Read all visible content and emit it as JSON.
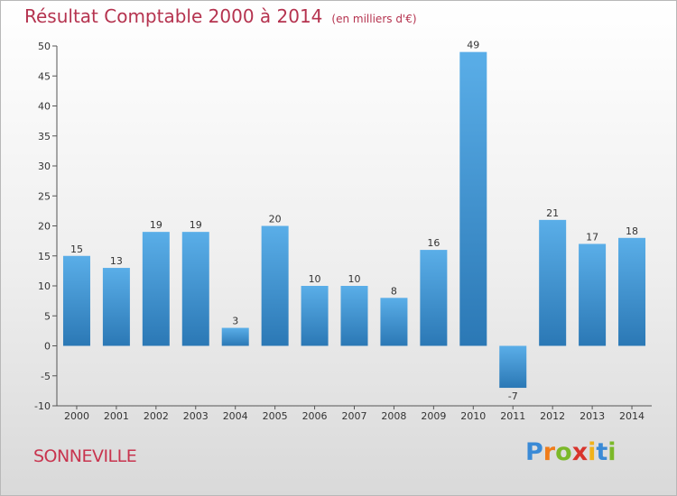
{
  "header": {
    "title": "Résultat Comptable 2000 à 2014",
    "subtitle": "(en milliers d'€)"
  },
  "footer": {
    "commune": "SONNEVILLE",
    "brand": "Proxiti",
    "brand_colors": [
      "#3a8ad6",
      "#f07c1a",
      "#7bb829",
      "#d8342c",
      "#f0b21a",
      "#3a8ad6",
      "#7bb829"
    ]
  },
  "colors": {
    "bar_light": "#5aaee8",
    "bar_dark": "#2b78b5",
    "title": "#b5334f"
  },
  "chart_data": {
    "type": "bar",
    "categories": [
      "2000",
      "2001",
      "2002",
      "2003",
      "2004",
      "2005",
      "2006",
      "2007",
      "2008",
      "2009",
      "2010",
      "2011",
      "2012",
      "2013",
      "2014"
    ],
    "values": [
      15,
      13,
      19,
      19,
      3,
      20,
      10,
      10,
      8,
      16,
      49,
      -7,
      21,
      17,
      18
    ],
    "ylim": [
      -10,
      50
    ],
    "yticks": [
      -10,
      -5,
      0,
      5,
      10,
      15,
      20,
      25,
      30,
      35,
      40,
      45,
      50
    ],
    "grid": false
  }
}
